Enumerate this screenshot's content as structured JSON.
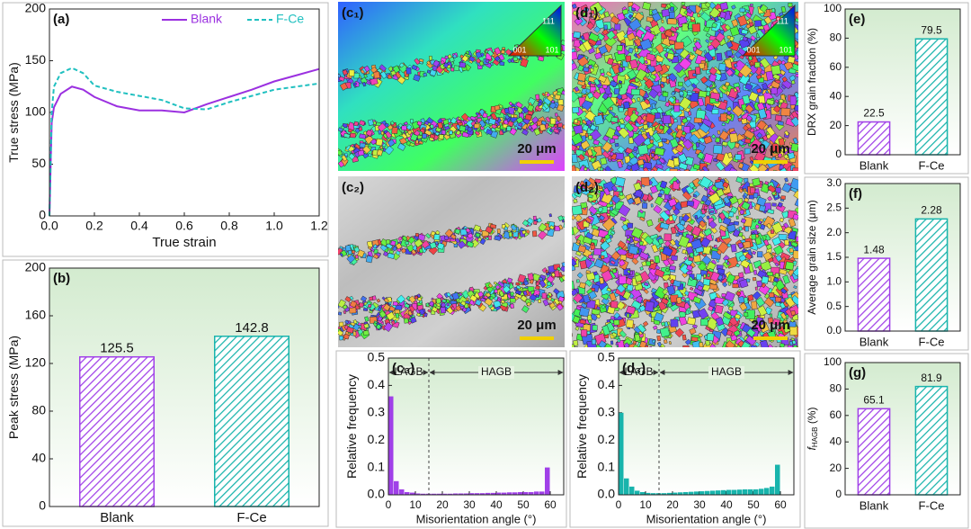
{
  "chart_data": [
    {
      "type": "line",
      "label": "(a)",
      "xlabel": "True strain",
      "ylabel": "True stress (MPa)",
      "x": [
        0,
        0.01,
        0.02,
        0.05,
        0.1,
        0.15,
        0.2,
        0.3,
        0.4,
        0.5,
        0.6,
        0.7,
        0.8,
        0.9,
        1.0,
        1.1,
        1.2
      ],
      "series": [
        {
          "name": "Blank",
          "color": "#9b30e0",
          "dash": false,
          "values": [
            0,
            90,
            105,
            118,
            125,
            122,
            115,
            106,
            102,
            102,
            100,
            108,
            115,
            122,
            130,
            136,
            142
          ]
        },
        {
          "name": "F-Ce",
          "color": "#20c0c0",
          "dash": true,
          "values": [
            0,
            100,
            125,
            138,
            143,
            138,
            126,
            120,
            116,
            112,
            104,
            103,
            110,
            116,
            122,
            125,
            128
          ]
        }
      ],
      "xlim": [
        0,
        1.2
      ],
      "xticks": [
        {
          "value": 0,
          "label": "0.0"
        },
        0.2,
        0.4,
        0.6,
        0.8,
        {
          "value": 1,
          "label": "1.0"
        },
        1.2
      ],
      "ylim": [
        0,
        200
      ],
      "yticks": [
        0,
        50,
        100,
        150,
        200
      ],
      "legend": "upper right"
    },
    {
      "type": "bar",
      "label": "(b)",
      "ylabel": "Peak stress (MPa)",
      "categories": [
        "Blank",
        "F-Ce"
      ],
      "values": [
        125.5,
        142.8
      ],
      "colors": [
        "#a040e8",
        "#18b4ac"
      ],
      "ylim": [
        0,
        200
      ],
      "yticks": [
        0,
        40,
        80,
        120,
        160,
        200
      ],
      "background": "#d3ebcf"
    },
    {
      "type": "histogram",
      "label": "(c₃)",
      "xlabel": "Misorientation angle (°)",
      "ylabel": "Relative frequency",
      "bins": [
        0,
        2,
        4,
        6,
        8,
        10,
        12,
        14,
        16,
        18,
        20,
        22,
        24,
        26,
        28,
        30,
        32,
        34,
        36,
        38,
        40,
        42,
        44,
        46,
        48,
        50,
        52,
        54,
        56,
        58,
        60,
        62
      ],
      "values": [
        0.36,
        0.05,
        0.02,
        0.01,
        0.008,
        0.005,
        0.004,
        0.004,
        0.004,
        0.004,
        0.004,
        0.004,
        0.005,
        0.005,
        0.005,
        0.006,
        0.006,
        0.006,
        0.007,
        0.007,
        0.008,
        0.008,
        0.009,
        0.009,
        0.01,
        0.01,
        0.01,
        0.012,
        0.012,
        0.1,
        0
      ],
      "color": "#a040e8",
      "divider": 15,
      "regions": [
        "LAGB",
        "HAGB"
      ],
      "xlim": [
        0,
        65
      ],
      "xticks": [
        0,
        10,
        20,
        30,
        40,
        50,
        60
      ],
      "ylim": [
        0,
        0.5
      ],
      "yticks": [
        {
          "value": 0,
          "label": "0.0"
        },
        0.1,
        0.2,
        0.3,
        0.4,
        0.5
      ],
      "background": "#d3ebcf"
    },
    {
      "type": "histogram",
      "label": "(d₃)",
      "xlabel": "Misorientation angle (°)",
      "ylabel": "Relative frequency",
      "bins": [
        0,
        2,
        4,
        6,
        8,
        10,
        12,
        14,
        16,
        18,
        20,
        22,
        24,
        26,
        28,
        30,
        32,
        34,
        36,
        38,
        40,
        42,
        44,
        46,
        48,
        50,
        52,
        54,
        56,
        58,
        60,
        62
      ],
      "values": [
        0.3,
        0.06,
        0.03,
        0.015,
        0.01,
        0.007,
        0.006,
        0.006,
        0.006,
        0.007,
        0.008,
        0.009,
        0.01,
        0.011,
        0.012,
        0.013,
        0.014,
        0.015,
        0.016,
        0.017,
        0.018,
        0.018,
        0.019,
        0.02,
        0.02,
        0.02,
        0.022,
        0.025,
        0.03,
        0.11,
        0
      ],
      "color": "#18b4ac",
      "divider": 15,
      "regions": [
        "LAGB",
        "HAGB"
      ],
      "xlim": [
        0,
        65
      ],
      "xticks": [
        0,
        10,
        20,
        30,
        40,
        50,
        60
      ],
      "ylim": [
        0,
        0.5
      ],
      "yticks": [
        {
          "value": 0,
          "label": "0.0"
        },
        0.1,
        0.2,
        0.3,
        0.4,
        0.5
      ],
      "background": "#d3ebcf"
    },
    {
      "type": "bar",
      "label": "(e)",
      "ylabel": "DRX grain fraction (%)",
      "categories": [
        "Blank",
        "F-Ce"
      ],
      "values": [
        22.5,
        79.5
      ],
      "colors": [
        "#a040e8",
        "#18b4ac"
      ],
      "ylim": [
        0,
        100
      ],
      "yticks": [
        0,
        20,
        40,
        60,
        80,
        100
      ],
      "background": "#d3ebcf"
    },
    {
      "type": "bar",
      "label": "(f)",
      "ylabel": "Average grain size (μm)",
      "categories": [
        "Blank",
        "F-Ce"
      ],
      "values": [
        1.48,
        2.28
      ],
      "colors": [
        "#a040e8",
        "#18b4ac"
      ],
      "ylim": [
        0,
        3
      ],
      "yticks": [
        {
          "value": 0,
          "label": "0.0"
        },
        0.5,
        {
          "value": 1,
          "label": "1.0"
        },
        1.5,
        {
          "value": 2,
          "label": "2.0"
        },
        2.5,
        {
          "value": 3,
          "label": "3.0"
        }
      ],
      "background": "#d3ebcf"
    },
    {
      "type": "bar",
      "label": "(g)",
      "ylabel": "f",
      "ylabel_sub": "HAGB",
      "ylabel_suffix": " (%)",
      "categories": [
        "Blank",
        "F-Ce"
      ],
      "values": [
        65.1,
        81.9
      ],
      "colors": [
        "#a040e8",
        "#18b4ac"
      ],
      "ylim": [
        0,
        100
      ],
      "yticks": [
        0,
        20,
        40,
        60,
        80,
        100
      ],
      "background": "#d3ebcf"
    }
  ],
  "maps": [
    {
      "label": "(c₁)",
      "scale_bar": "20 μm"
    },
    {
      "label": "(d₁)",
      "scale_bar": "20 μm"
    },
    {
      "label": "(c₂)",
      "scale_bar": "20 μm"
    },
    {
      "label": "(d₂)",
      "scale_bar": "20 μm"
    }
  ],
  "ipf_legend": {
    "top": "111",
    "left": "001",
    "right": "101"
  }
}
